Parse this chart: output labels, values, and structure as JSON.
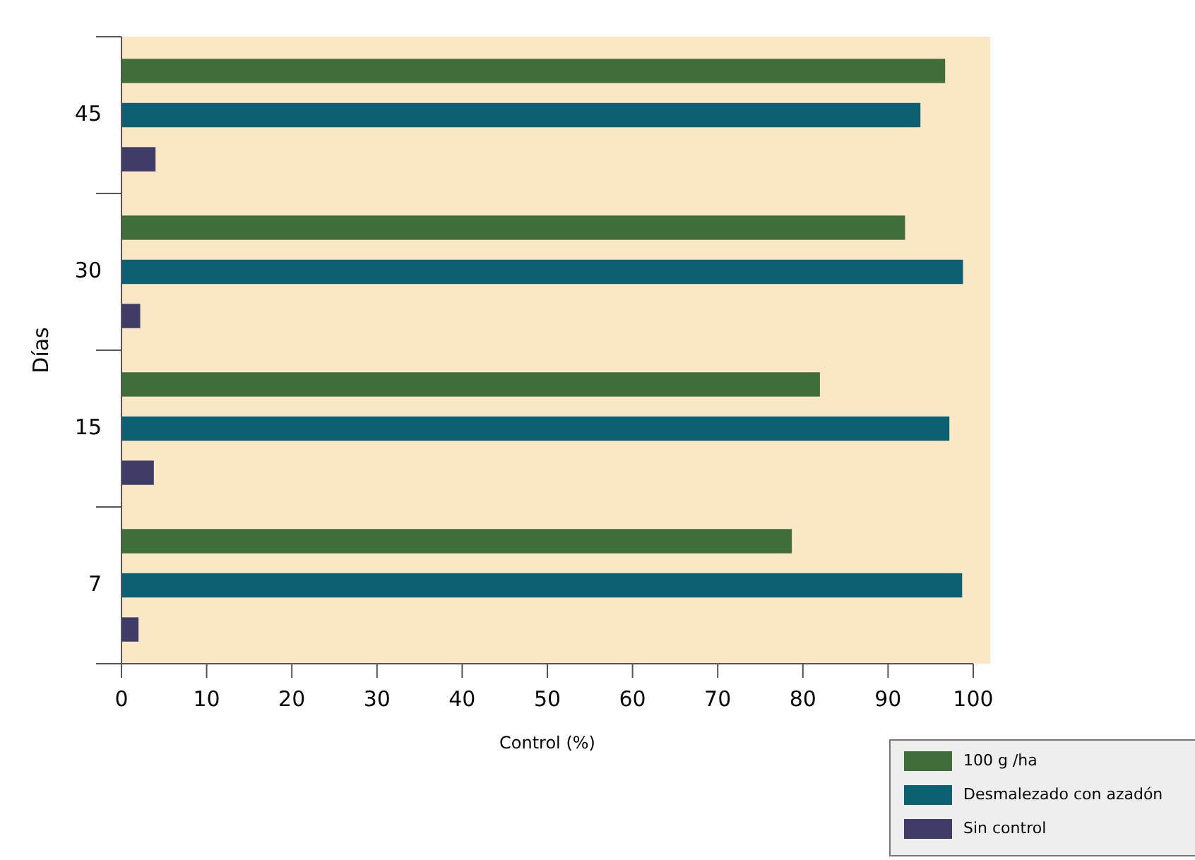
{
  "chart_data": {
    "type": "bar",
    "orientation": "horizontal",
    "xlabel": "Control (%)",
    "ylabel": "Días",
    "categories": [
      "45",
      "30",
      "15",
      "7"
    ],
    "series": [
      {
        "name": "100 g /ha",
        "color": "#3f6e3a",
        "values": [
          96.7,
          92.0,
          82.0,
          78.7
        ]
      },
      {
        "name": "Desmalezado con azadón",
        "color": "#0d5f74",
        "values": [
          93.8,
          98.8,
          97.2,
          98.7
        ]
      },
      {
        "name": "Sin control",
        "color": "#3f3d68",
        "values": [
          4.0,
          2.2,
          3.8,
          2.0
        ]
      }
    ],
    "xlim": [
      0,
      100
    ],
    "xticks": [
      0,
      10,
      20,
      30,
      40,
      50,
      60,
      70,
      80,
      90,
      100
    ],
    "grid": false,
    "legend": "bottom right"
  }
}
